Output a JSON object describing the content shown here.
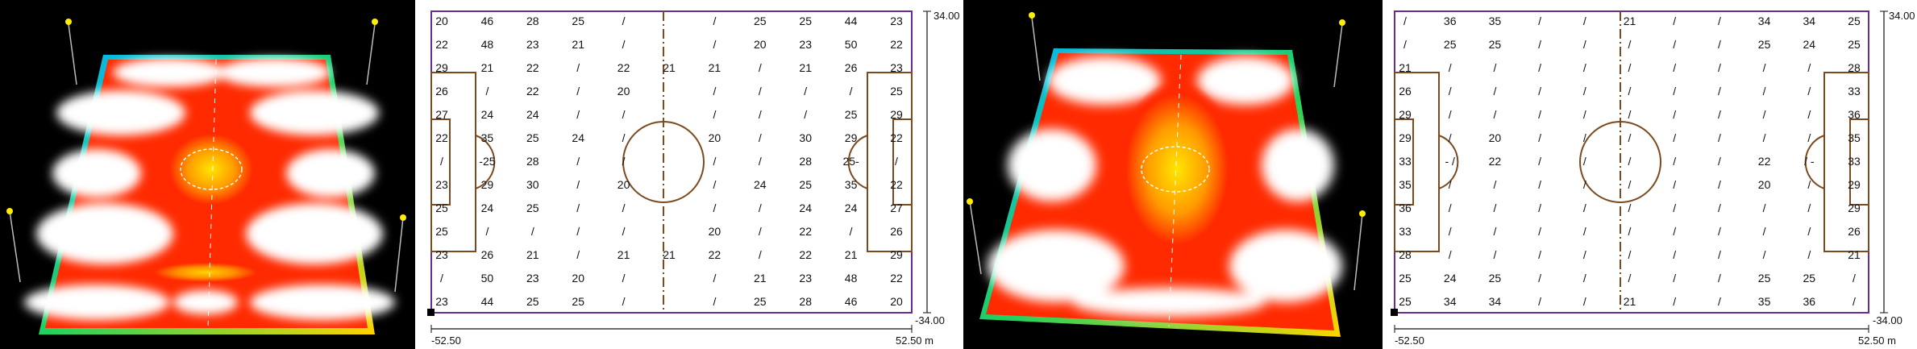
{
  "colors": {
    "outline": "#6a2c91",
    "markings": "#7b4a1e",
    "heat_hot": "#ffd400",
    "heat_warm": "#ff2a00",
    "heat_edge": "#00c070",
    "background_render": "#000000"
  },
  "panel1": {
    "rows": [
      [
        "20",
        "46",
        "28",
        "25",
        "/",
        "",
        "/",
        "25",
        "25",
        "44",
        "23"
      ],
      [
        "22",
        "48",
        "23",
        "21",
        "/",
        "",
        "/",
        "20",
        "23",
        "50",
        "22"
      ],
      [
        "29",
        "21",
        "22",
        "/",
        "22",
        "21",
        "21",
        "/",
        "21",
        "26",
        "23"
      ],
      [
        "26",
        "/",
        "22",
        "/",
        "20",
        "",
        "/",
        "/",
        "/",
        "/",
        "25"
      ],
      [
        "27",
        "24",
        "24",
        "/",
        "/",
        "",
        "/",
        "/",
        "/",
        "25",
        "29"
      ],
      [
        "22",
        "35",
        "25",
        "24",
        "/",
        "",
        "20",
        "/",
        "30",
        "29",
        "22"
      ],
      [
        "/",
        "-25",
        "28",
        "/",
        "/",
        "",
        "/",
        "/",
        "28",
        "25-",
        "/"
      ],
      [
        "23",
        "29",
        "30",
        "/",
        "20",
        "",
        "/",
        "24",
        "25",
        "35",
        "22"
      ],
      [
        "25",
        "24",
        "25",
        "/",
        "/",
        "",
        "/",
        "/",
        "24",
        "24",
        "27"
      ],
      [
        "25",
        "/",
        "/",
        "/",
        "/",
        "",
        "20",
        "/",
        "22",
        "/",
        "26"
      ],
      [
        "23",
        "26",
        "21",
        "/",
        "21",
        "21",
        "22",
        "/",
        "22",
        "21",
        "29"
      ],
      [
        "/",
        "50",
        "23",
        "20",
        "/",
        "",
        "/",
        "21",
        "23",
        "48",
        "22"
      ],
      [
        "23",
        "44",
        "25",
        "25",
        "/",
        "",
        "/",
        "25",
        "28",
        "46",
        "20"
      ]
    ],
    "y_top": "34.00 m",
    "y_bottom": "-34.00",
    "x_left": "-52.50",
    "x_right": "52.50 m"
  },
  "panel2": {
    "rows": [
      [
        "/",
        "36",
        "35",
        "/",
        "/",
        "21",
        "/",
        "/",
        "34",
        "34",
        "25"
      ],
      [
        "/",
        "25",
        "25",
        "/",
        "/",
        "/",
        "/",
        "/",
        "25",
        "24",
        "25"
      ],
      [
        "21",
        "/",
        "/",
        "/",
        "/",
        "/",
        "/",
        "/",
        "/",
        "/",
        "28"
      ],
      [
        "26",
        "/",
        "/",
        "/",
        "/",
        "/",
        "/",
        "/",
        "/",
        "/",
        "33"
      ],
      [
        "29",
        "/",
        "/",
        "/",
        "/",
        "/",
        "/",
        "/",
        "/",
        "/",
        "36"
      ],
      [
        "29",
        "/",
        "20",
        "/",
        "/",
        "/",
        "/",
        "/",
        "/",
        "/",
        "35"
      ],
      [
        "33",
        "- /",
        "22",
        "/",
        "/",
        "/",
        "/",
        "/",
        "22",
        "/ -",
        "33"
      ],
      [
        "35",
        "/",
        "/",
        "/",
        "/",
        "/",
        "/",
        "/",
        "20",
        "/",
        "29"
      ],
      [
        "36",
        "/",
        "/",
        "/",
        "/",
        "/",
        "/",
        "/",
        "/",
        "/",
        "29"
      ],
      [
        "33",
        "/",
        "/",
        "/",
        "/",
        "/",
        "/",
        "/",
        "/",
        "/",
        "26"
      ],
      [
        "28",
        "/",
        "/",
        "/",
        "/",
        "/",
        "/",
        "/",
        "/",
        "/",
        "21"
      ],
      [
        "25",
        "24",
        "25",
        "/",
        "/",
        "/",
        "/",
        "/",
        "25",
        "25",
        "/"
      ],
      [
        "25",
        "34",
        "34",
        "/",
        "/",
        "21",
        "/",
        "/",
        "35",
        "36",
        "/"
      ]
    ],
    "y_top": "34.00 m",
    "y_bottom": "-34.00",
    "x_left": "-52.50",
    "x_right": "52.50 m"
  }
}
